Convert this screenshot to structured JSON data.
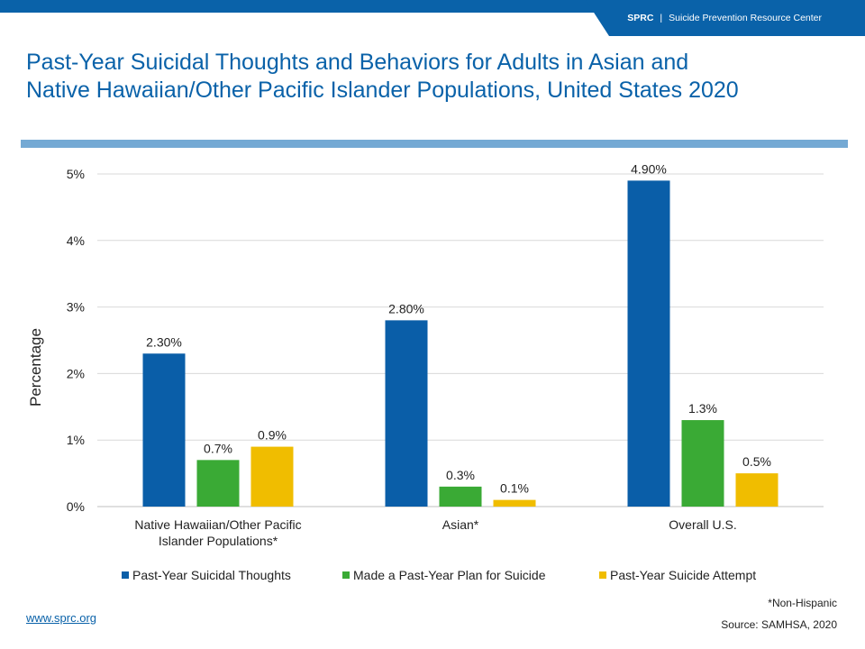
{
  "header": {
    "org_abbr": "SPRC",
    "separator": "|",
    "org_name": "Suicide Prevention Resource Center"
  },
  "title_lines": [
    "Past-Year Suicidal Thoughts and Behaviors for Adults in Asian and",
    "Native Hawaiian/Other Pacific Islander Populations, United States 2020"
  ],
  "chart_data": {
    "type": "bar",
    "title": "Past-Year Suicidal Thoughts and Behaviors for Adults in Asian and Native Hawaiian/Other Pacific Islander Populations, United States 2020",
    "ylabel": "Percentage",
    "xlabel": "",
    "ylim": [
      0,
      5
    ],
    "yticks": [
      0,
      1,
      2,
      3,
      4,
      5
    ],
    "ytick_labels": [
      "0%",
      "1%",
      "2%",
      "3%",
      "4%",
      "5%"
    ],
    "grid": true,
    "legend_position": "bottom",
    "categories": [
      [
        "Native Hawaiian/Other Pacific",
        "Islander Populations*"
      ],
      [
        "Asian*"
      ],
      [
        "Overall U.S."
      ]
    ],
    "series": [
      {
        "name": "Past-Year Suicidal Thoughts",
        "color": "#0a5ea8",
        "values": [
          2.3,
          2.8,
          4.9
        ],
        "labels": [
          "2.30%",
          "2.80%",
          "4.90%"
        ]
      },
      {
        "name": "Made a Past-Year Plan for Suicide",
        "color": "#3aaa35",
        "values": [
          0.7,
          0.3,
          1.3
        ],
        "labels": [
          "0.7%",
          "0.3%",
          "1.3%"
        ]
      },
      {
        "name": "Past-Year Suicide Attempt",
        "color": "#f0bd00",
        "values": [
          0.9,
          0.1,
          0.5
        ],
        "labels": [
          "0.9%",
          "0.1%",
          "0.5%"
        ]
      }
    ]
  },
  "notes": {
    "footnote": "*Non-Hispanic",
    "source": "Source: SAMHSA, 2020"
  },
  "footer": {
    "link_text": "www.sprc.org"
  },
  "colors": {
    "brand_blue": "#0a62a9",
    "divider_blue": "#74a9d4",
    "gridline": "#d9d9d9"
  }
}
